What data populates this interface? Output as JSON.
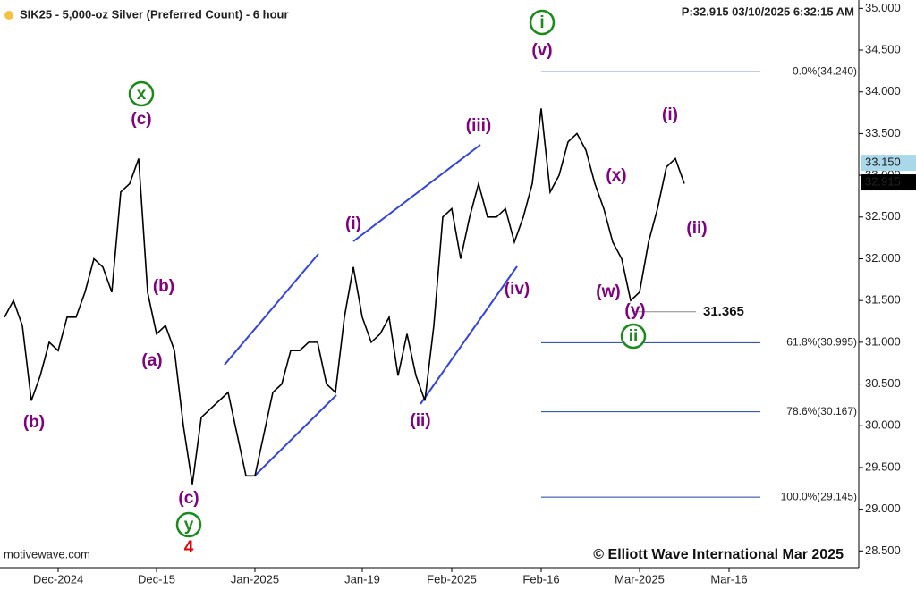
{
  "chart_data": {
    "type": "line",
    "title": "SIK25 - 5,000-oz Silver (Preferred Count) - 6 hour",
    "subtitle": "P:32.915  03/10/2025 6:32:15 AM",
    "source": "motivewave.com",
    "copyright": "© Elliott Wave International Mar 2025",
    "categories": [
      null,
      null,
      null,
      null,
      null,
      null,
      "Dec-2024",
      null,
      null,
      null,
      null,
      null,
      null,
      null,
      null,
      null,
      null,
      "Dec-15",
      null,
      null,
      null,
      null,
      null,
      null,
      null,
      null,
      null,
      null,
      "Jan-2025",
      null,
      null,
      null,
      null,
      null,
      null,
      null,
      null,
      null,
      null,
      null,
      "Jan-19",
      null,
      null,
      null,
      null,
      null,
      null,
      null,
      null,
      null,
      "Feb-2025",
      null,
      null,
      null,
      null,
      null,
      null,
      null,
      null,
      null,
      "Feb-16",
      null,
      null,
      null,
      null,
      null,
      null,
      null,
      null,
      null,
      null,
      "Mar-2025",
      null,
      null,
      null,
      null,
      null,
      null,
      null,
      null,
      null,
      "Mar-16",
      null,
      null,
      null,
      null,
      null,
      null,
      null,
      null,
      null,
      null,
      null,
      null,
      null,
      null
    ],
    "series": [
      {
        "name": "SIK25",
        "color": "#000000",
        "values": [
          31.3,
          31.5,
          31.2,
          30.3,
          30.6,
          31.0,
          30.9,
          31.3,
          31.3,
          31.6,
          32.0,
          31.9,
          31.6,
          32.8,
          32.9,
          33.2,
          31.6,
          31.1,
          31.2,
          30.9,
          30.0,
          29.3,
          30.1,
          30.2,
          30.3,
          30.4,
          29.9,
          29.4,
          29.4,
          29.9,
          30.4,
          30.5,
          30.9,
          30.9,
          31.0,
          31.0,
          30.5,
          30.4,
          31.3,
          31.9,
          31.3,
          31.0,
          31.1,
          31.3,
          30.6,
          31.1,
          30.6,
          30.3,
          31.2,
          32.5,
          32.6,
          32.0,
          32.5,
          32.9,
          32.5,
          32.5,
          32.6,
          32.2,
          32.5,
          32.9,
          33.8,
          32.8,
          33.0,
          33.4,
          33.5,
          33.3,
          32.9,
          32.6,
          32.2,
          32.0,
          31.5,
          31.6,
          32.2,
          32.6,
          33.1,
          33.2,
          32.9,
          null,
          null,
          null,
          null,
          null,
          null,
          null,
          null,
          null,
          null,
          null,
          null,
          null,
          null,
          null,
          null,
          null,
          null,
          null
        ]
      }
    ],
    "ylim": [
      28.3,
      35.1
    ],
    "yticks": [
      {
        "value": 28.5,
        "label": "28.500"
      },
      {
        "value": 29.0,
        "label": "29.000"
      },
      {
        "value": 29.5,
        "label": "29.500"
      },
      {
        "value": 30.0,
        "label": "30.000"
      },
      {
        "value": 30.5,
        "label": "30.500"
      },
      {
        "value": 31.0,
        "label": "31.000"
      },
      {
        "value": 31.5,
        "label": "31.500"
      },
      {
        "value": 32.0,
        "label": "32.000"
      },
      {
        "value": 32.5,
        "label": "32.500"
      },
      {
        "value": 33.0,
        "label": "33.000"
      },
      {
        "value": 33.5,
        "label": "33.500"
      },
      {
        "value": 34.0,
        "label": "34.000"
      },
      {
        "value": 34.5,
        "label": "34.500"
      },
      {
        "value": 35.0,
        "label": "35.000"
      }
    ],
    "price_markers": [
      {
        "value": 33.15,
        "label": "33.150",
        "color": "#a8d8ea"
      },
      {
        "value": 32.915,
        "label": "32.915",
        "color": "#000000"
      }
    ],
    "fib_levels": [
      {
        "value": 34.24,
        "label": "0.0%(34.240)"
      },
      {
        "value": 30.995,
        "label": "61.8%(30.995)"
      },
      {
        "value": 30.167,
        "label": "78.6%(30.167)"
      },
      {
        "value": 29.145,
        "label": "100.0%(29.145)"
      }
    ],
    "low_marker": 31.365,
    "wave_labels": [
      {
        "text": "(b)",
        "color": "#800080"
      },
      {
        "text": "x",
        "color": "#1a8a1a",
        "circled": true
      },
      {
        "text": "(c)",
        "color": "#800080"
      },
      {
        "text": "(b)",
        "color": "#800080"
      },
      {
        "text": "(a)",
        "color": "#800080"
      },
      {
        "text": "(c)",
        "color": "#800080"
      },
      {
        "text": "y",
        "color": "#1a8a1a",
        "circled": true
      },
      {
        "text": "4",
        "color": "#e00000"
      },
      {
        "text": "(i)",
        "color": "#800080"
      },
      {
        "text": "(ii)",
        "color": "#800080"
      },
      {
        "text": "(iii)",
        "color": "#800080"
      },
      {
        "text": "(iv)",
        "color": "#800080"
      },
      {
        "text": "i",
        "color": "#1a8a1a",
        "circled": true
      },
      {
        "text": "(v)",
        "color": "#800080"
      },
      {
        "text": "(x)",
        "color": "#800080"
      },
      {
        "text": "(w)",
        "color": "#800080"
      },
      {
        "text": "(y)",
        "color": "#800080"
      },
      {
        "text": "ii",
        "color": "#1a8a1a",
        "circled": true
      },
      {
        "text": "(i)",
        "color": "#800080"
      },
      {
        "text": "(ii)",
        "color": "#800080"
      }
    ]
  }
}
